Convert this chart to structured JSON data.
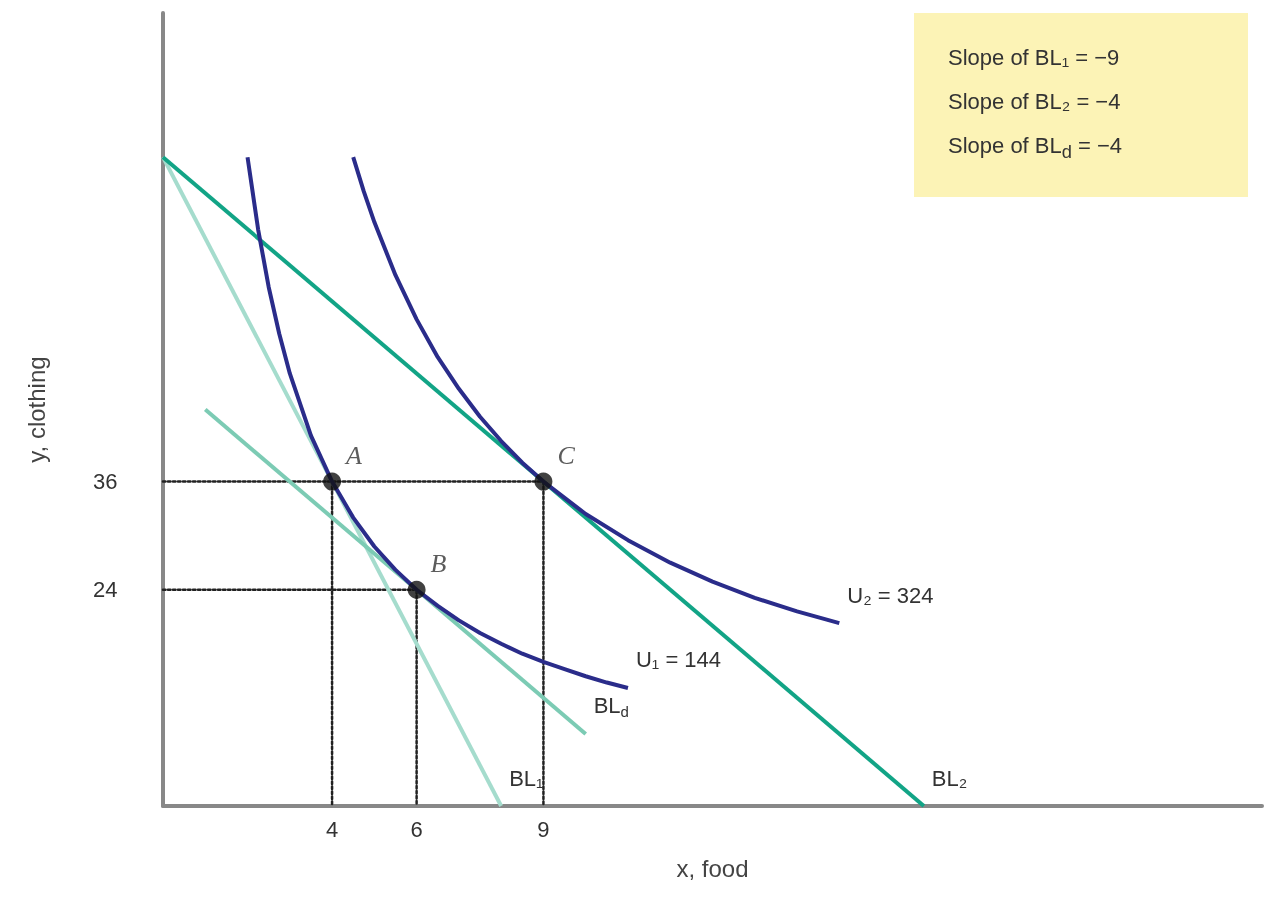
{
  "chart_data": {
    "type": "line",
    "xlabel": "x, food",
    "ylabel": "y, clothing",
    "xlim": [
      0,
      26
    ],
    "ylim": [
      0,
      88
    ],
    "xticks": [
      4,
      6,
      9
    ],
    "yticks": [
      24,
      36
    ],
    "grid": false,
    "legend": false,
    "annotations": [
      "Slope of BL₁ = −9",
      "Slope of BL₂ = −4",
      "Slope of BL$_{d}$ = −4"
    ],
    "series": [
      {
        "type": "line",
        "line_style": "dotted",
        "marker": "none",
        "color": "#222222",
        "x": [
          0,
          9
        ],
        "values": [
          36,
          36
        ]
      },
      {
        "type": "line",
        "line_style": "dotted",
        "marker": "none",
        "color": "#222222",
        "x": [
          4,
          4
        ],
        "values": [
          36,
          0
        ]
      },
      {
        "type": "line",
        "line_style": "dotted",
        "marker": "none",
        "color": "#222222",
        "x": [
          9,
          9
        ],
        "values": [
          36,
          0
        ]
      },
      {
        "type": "line",
        "line_style": "dotted",
        "marker": "none",
        "color": "#222222",
        "x": [
          0,
          6,
          6
        ],
        "values": [
          24,
          24,
          0
        ]
      },
      {
        "name": "BL₁",
        "line_style": "solid",
        "marker": "none",
        "color": "#a5dccd",
        "x": [
          0,
          8
        ],
        "values": [
          72,
          0
        ]
      },
      {
        "name": "BL$_{d}$",
        "line_style": "solid",
        "marker": "none",
        "color": "#7ccbb4",
        "x": [
          1,
          10
        ],
        "values": [
          44,
          8
        ]
      },
      {
        "name": "BL₂",
        "line_style": "solid",
        "marker": "none",
        "color": "#12a486",
        "x": [
          0,
          18
        ],
        "values": [
          72,
          0
        ]
      },
      {
        "name": "U₁ = 144",
        "line_style": "solid",
        "marker": "none",
        "color": "#2a2c8a",
        "x": [
          2,
          2.25,
          2.5,
          2.75,
          3,
          3.5,
          4,
          4.5,
          5,
          5.5,
          6,
          6.5,
          7,
          7.5,
          8,
          8.5,
          9,
          9.5,
          10,
          10.5,
          11
        ],
        "values": [
          72,
          64,
          57.6,
          52.4,
          48,
          41.1,
          36,
          32,
          28.8,
          26.2,
          24,
          22.2,
          20.6,
          19.2,
          18,
          16.9,
          16,
          15.2,
          14.4,
          13.7,
          13.1
        ]
      },
      {
        "name": "U₂ = 324",
        "line_style": "solid",
        "marker": "none",
        "color": "#2a2c8a",
        "x": [
          4.5,
          4.75,
          5,
          5.5,
          6,
          6.5,
          7,
          7.5,
          8,
          8.5,
          9,
          10,
          11,
          12,
          13,
          14,
          15,
          16
        ],
        "values": [
          72,
          68.2,
          64.8,
          58.9,
          54,
          49.8,
          46.3,
          43.2,
          40.5,
          38.1,
          36,
          32.4,
          29.5,
          27,
          24.9,
          23.1,
          21.6,
          20.3
        ]
      },
      {
        "name": "A",
        "type": "scatter",
        "marker": "circle",
        "color": "#111111",
        "x": [
          4
        ],
        "values": [
          36
        ]
      },
      {
        "name": "B",
        "type": "scatter",
        "marker": "circle",
        "color": "#111111",
        "x": [
          6
        ],
        "values": [
          24
        ]
      },
      {
        "name": "C",
        "type": "scatter",
        "marker": "circle",
        "color": "#111111",
        "x": [
          9
        ],
        "values": [
          36
        ]
      }
    ]
  }
}
